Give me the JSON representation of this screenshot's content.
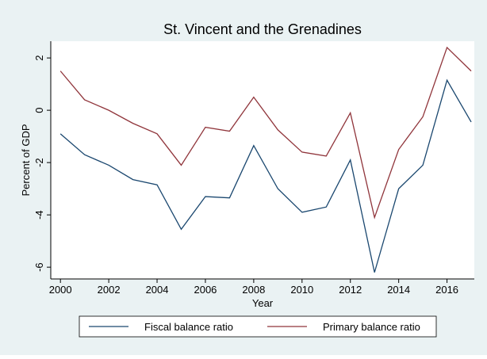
{
  "chart_data": {
    "type": "line",
    "title": "St. Vincent and the Grenadines",
    "x_label": "Year",
    "y_label": "Percent of GDP",
    "x": [
      2000,
      2001,
      2002,
      2003,
      2004,
      2005,
      2006,
      2007,
      2008,
      2009,
      2010,
      2011,
      2012,
      2013,
      2014,
      2015,
      2016,
      2017
    ],
    "series": [
      {
        "name": "Fiscal balance ratio",
        "color": "#1a476f",
        "values": [
          -0.9,
          -1.7,
          -2.1,
          -2.65,
          -2.85,
          -4.55,
          -3.3,
          -3.35,
          -1.35,
          -3.0,
          -3.9,
          -3.7,
          -1.9,
          -6.2,
          -3.0,
          -2.1,
          1.15,
          -0.45
        ]
      },
      {
        "name": "Primary balance ratio",
        "color": "#90353b",
        "values": [
          1.5,
          0.4,
          0.0,
          -0.5,
          -0.9,
          -2.1,
          -0.65,
          -0.8,
          0.5,
          -0.75,
          -1.6,
          -1.75,
          -0.1,
          -4.1,
          -1.5,
          -0.25,
          2.4,
          1.5
        ]
      }
    ],
    "xlim": [
      1999.6,
      2017.13
    ],
    "xticks": [
      2000,
      2002,
      2004,
      2006,
      2008,
      2010,
      2012,
      2014,
      2016
    ],
    "ylim": [
      -6.45,
      2.64
    ],
    "yticks": [
      -6,
      -4,
      -2,
      0,
      2
    ],
    "grid": false,
    "legend": "bottom"
  }
}
